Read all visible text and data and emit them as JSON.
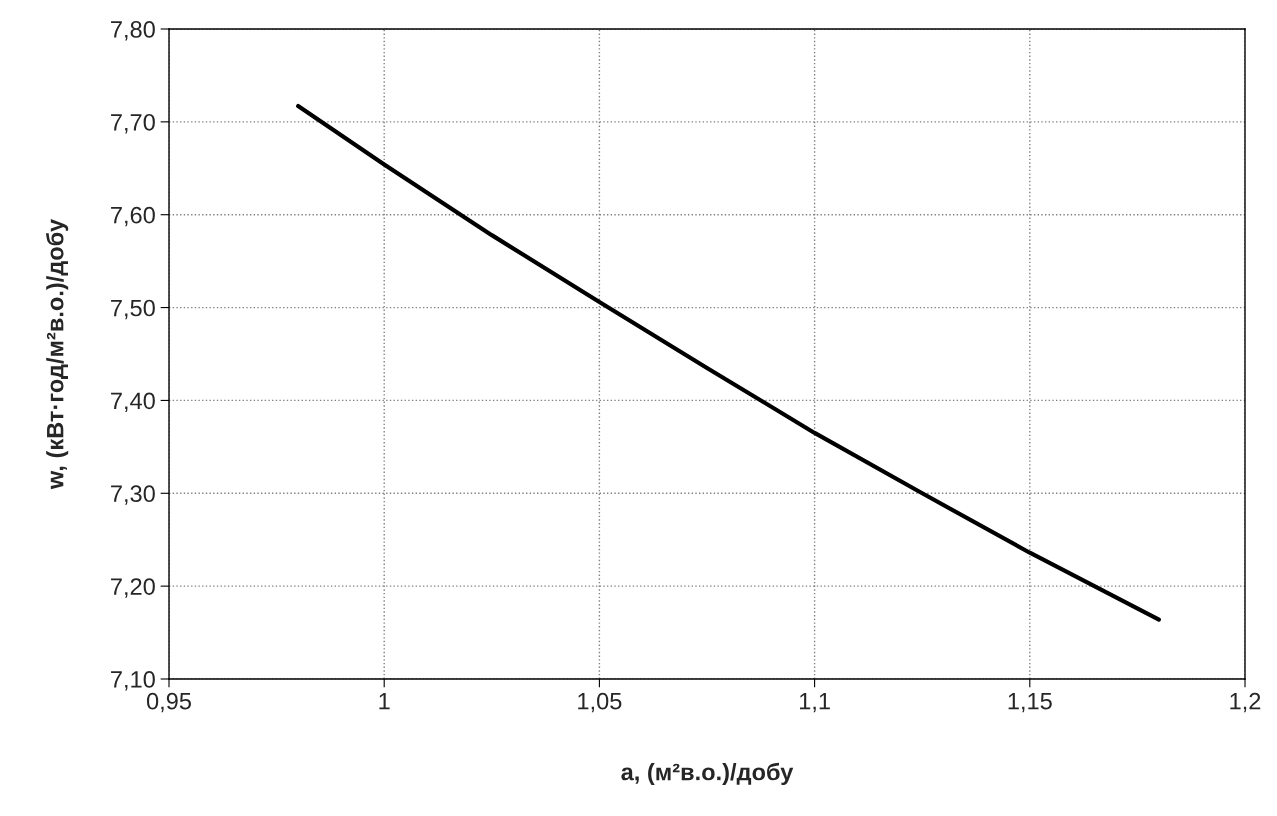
{
  "chart_data": {
    "type": "line",
    "xlabel": "a, (м²в.о.)/добу",
    "ylabel": "w, (кВт·год/м²в.о.)/добу",
    "x": [
      0.98,
      1.0,
      1.025,
      1.05,
      1.075,
      1.1,
      1.125,
      1.15,
      1.18
    ],
    "series": [
      {
        "color": "#000000",
        "values": [
          7.717,
          7.654,
          7.578,
          7.506,
          7.435,
          7.365,
          7.3,
          7.236,
          7.164
        ]
      }
    ],
    "xlim": [
      0.95,
      1.2
    ],
    "xticks": [
      {
        "value": 0.95,
        "label": "0,95"
      },
      {
        "value": 1.0,
        "label": "1"
      },
      {
        "value": 1.05,
        "label": "1,05"
      },
      {
        "value": 1.1,
        "label": "1,1"
      },
      {
        "value": 1.15,
        "label": "1,15"
      },
      {
        "value": 1.2,
        "label": "1,2"
      }
    ],
    "ylim": [
      7.1,
      7.8
    ],
    "yticks": [
      {
        "value": 7.1,
        "label": "7,10"
      },
      {
        "value": 7.2,
        "label": "7,20"
      },
      {
        "value": 7.3,
        "label": "7,30"
      },
      {
        "value": 7.4,
        "label": "7,40"
      },
      {
        "value": 7.5,
        "label": "7,50"
      },
      {
        "value": 7.6,
        "label": "7,60"
      },
      {
        "value": 7.7,
        "label": "7,70"
      },
      {
        "value": 7.8,
        "label": "7,80"
      }
    ],
    "grid": true,
    "marker": "none",
    "line_style": "solid"
  }
}
